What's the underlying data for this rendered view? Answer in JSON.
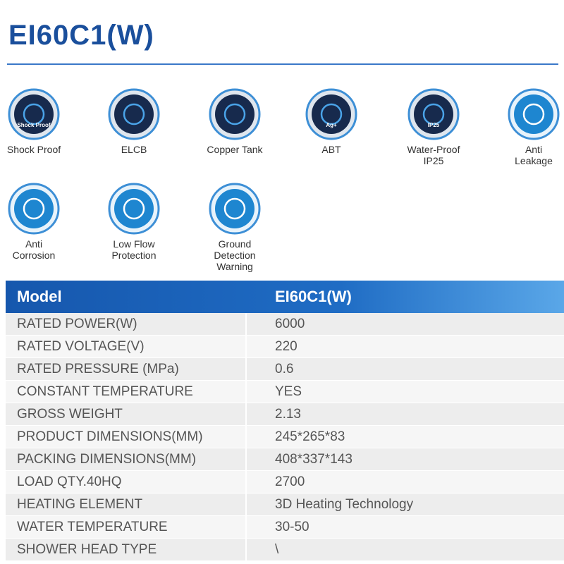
{
  "header": {
    "title": "EI60C1(W)"
  },
  "icons": [
    {
      "label": [
        "Shock Proof"
      ],
      "badge": "Shock Proof"
    },
    {
      "label": [
        "ELCB"
      ]
    },
    {
      "label": [
        "Copper Tank"
      ]
    },
    {
      "label": [
        "ABT"
      ],
      "badge": "Ag+"
    },
    {
      "label": [
        "Water-Proof",
        "IP25"
      ],
      "badge": "IP25"
    },
    {
      "label": [
        "Anti",
        "Leakage"
      ]
    },
    {
      "label": [
        "Anti",
        "Corrosion"
      ]
    },
    {
      "label": [
        "Low Flow",
        "Protection"
      ]
    },
    {
      "label": [
        "Ground",
        "Detection",
        "Warning"
      ]
    }
  ],
  "table": {
    "header": [
      "Model",
      "EI60C1(W)"
    ],
    "rows": [
      [
        "RATED POWER(W)",
        "6000"
      ],
      [
        "RATED VOLTAGE(V)",
        "220"
      ],
      [
        "RATED PRESSURE (MPa)",
        "0.6"
      ],
      [
        "CONSTANT TEMPERATURE",
        "YES"
      ],
      [
        "GROSS WEIGHT",
        "2.13"
      ],
      [
        "PRODUCT DIMENSIONS(MM)",
        "245*265*83"
      ],
      [
        "PACKING DIMENSIONS(MM)",
        "408*337*143"
      ],
      [
        "LOAD QTY.40HQ",
        "2700"
      ],
      [
        "HEATING ELEMENT",
        "3D Heating Technology"
      ],
      [
        "WATER TEMPERATURE",
        "30-50"
      ],
      [
        "SHOWER HEAD TYPE",
        "\\"
      ]
    ]
  }
}
